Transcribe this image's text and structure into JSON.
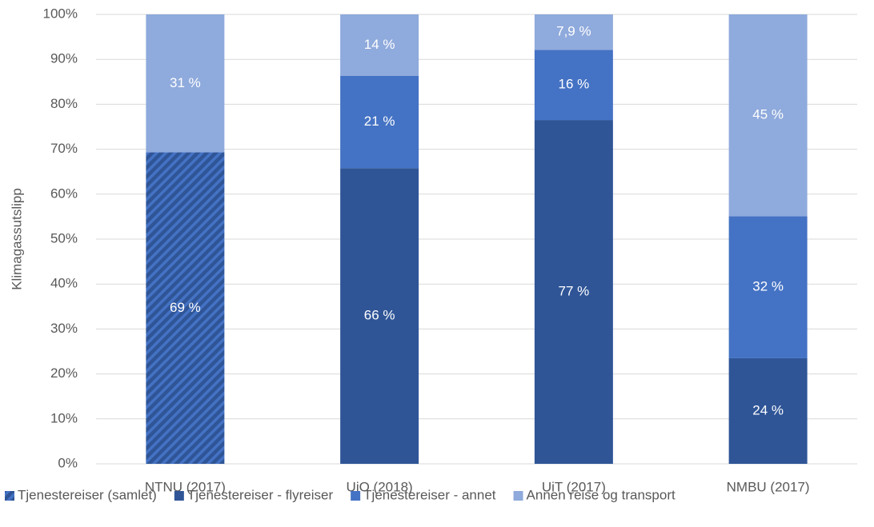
{
  "chart_data": {
    "type": "bar",
    "stacked": true,
    "y_label": "Klimagassutslipp",
    "categories": [
      "NTNU (2017)",
      "UiO (2018)",
      "UiT (2017)",
      "NMBU (2017)"
    ],
    "series": [
      {
        "name": "Tjenestereiser (samlet)",
        "color": "#2f5597",
        "hatch": true,
        "values": [
          69.3,
          null,
          null,
          null
        ],
        "value_labels": [
          "69 %",
          null,
          null,
          null
        ]
      },
      {
        "name": "Tjenestereiser - flyreiser",
        "color": "#2f5597",
        "values": [
          null,
          65.8,
          76.5,
          23.5
        ],
        "value_labels": [
          null,
          "66 %",
          "77 %",
          "24 %"
        ]
      },
      {
        "name": "Tjenestereiser - annet",
        "color": "#4472c4",
        "values": [
          null,
          20.5,
          15.6,
          31.6
        ],
        "value_labels": [
          null,
          "21 %",
          "16 %",
          "32 %"
        ]
      },
      {
        "name": "Annen reise og transport",
        "color": "#8faadc",
        "values": [
          30.7,
          13.7,
          7.9,
          44.9
        ],
        "value_labels": [
          "31 %",
          "14 %",
          "7,9 %",
          "45 %"
        ]
      }
    ],
    "ylim": [
      0,
      100
    ],
    "yticks": [
      {
        "value": 0,
        "label": "0%"
      },
      {
        "value": 10,
        "label": "10%"
      },
      {
        "value": 20,
        "label": "20%"
      },
      {
        "value": 30,
        "label": "30%"
      },
      {
        "value": 40,
        "label": "40%"
      },
      {
        "value": 50,
        "label": "50%"
      },
      {
        "value": 60,
        "label": "60%"
      },
      {
        "value": 70,
        "label": "70%"
      },
      {
        "value": 80,
        "label": "80%"
      },
      {
        "value": 90,
        "label": "90%"
      },
      {
        "value": 100,
        "label": "100%"
      }
    ],
    "grid": true,
    "legend": "bottom"
  }
}
